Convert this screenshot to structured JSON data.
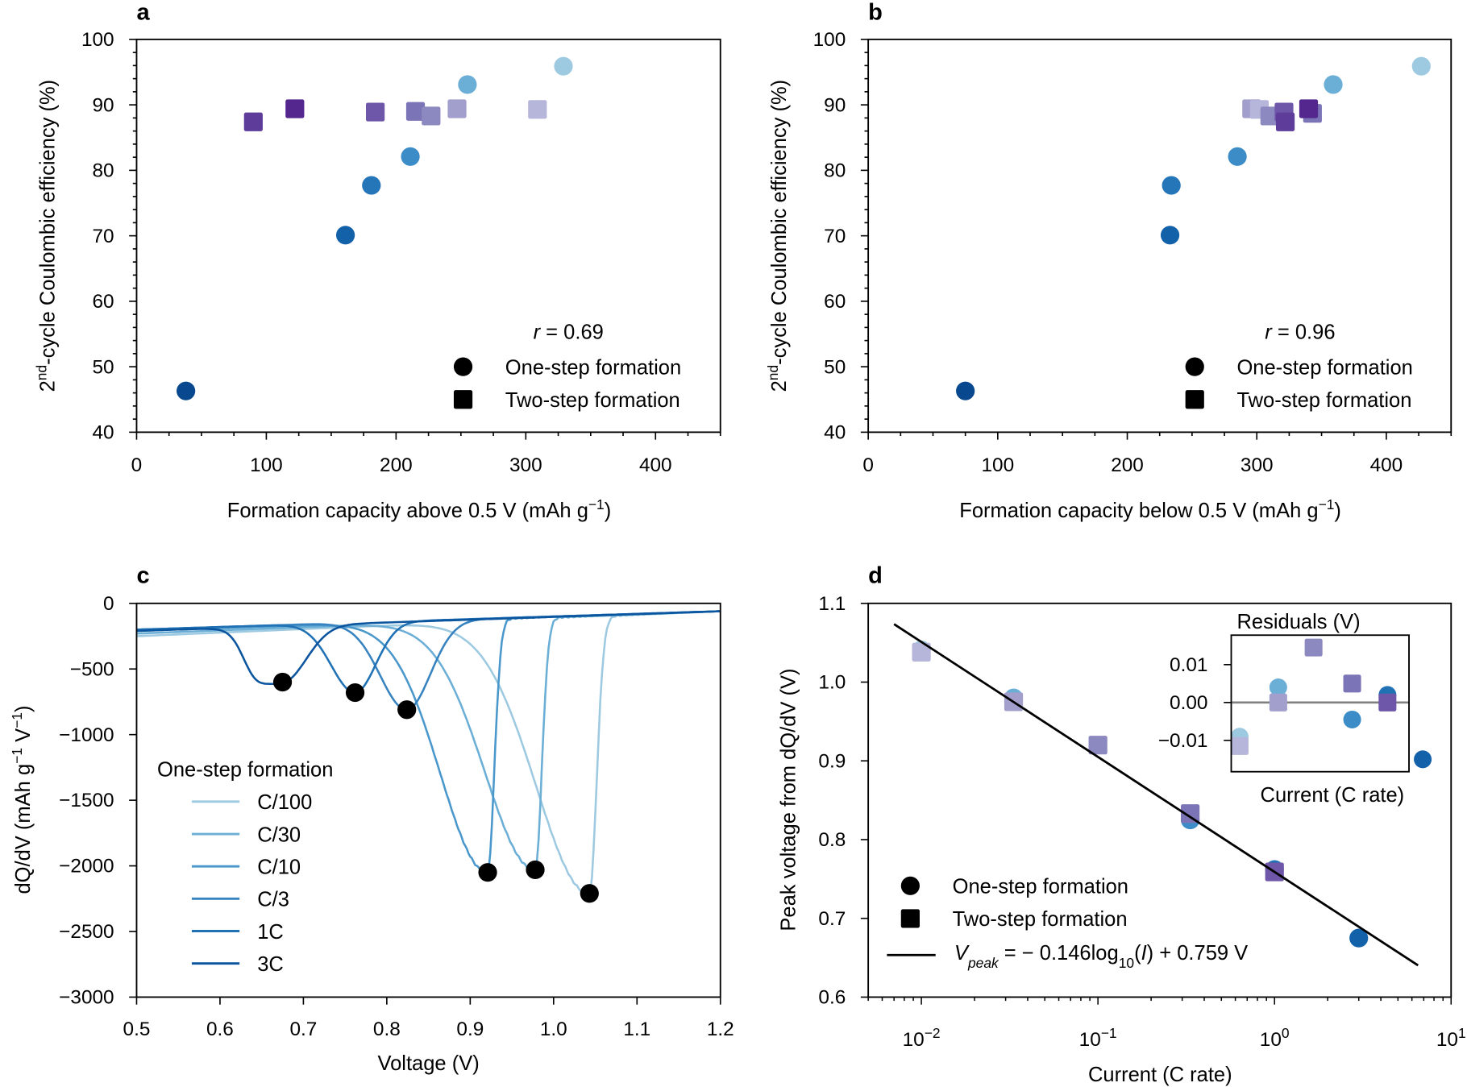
{
  "figure": {
    "panel_letters": [
      "a",
      "b",
      "c",
      "d"
    ]
  },
  "chart_data": [
    {
      "panel": "a",
      "type": "scatter",
      "xlabel_parts": [
        "Formation capacity above 0.5 V (mAh g",
        "−1",
        ")"
      ],
      "ylabel_parts": [
        "2",
        "nd",
        "-cycle Coulombic efficiency (%)"
      ],
      "xlim": [
        0,
        450
      ],
      "ylim": [
        40,
        100
      ],
      "xticks": [
        0,
        100,
        200,
        300,
        400
      ],
      "yticks": [
        40,
        50,
        60,
        70,
        80,
        90,
        100
      ],
      "annotation": {
        "var": "r",
        "text": " = 0.69"
      },
      "legend": {
        "placement": "lower-right",
        "entries": [
          {
            "marker": "circle",
            "label": "One-step formation"
          },
          {
            "marker": "square",
            "label": "Two-step formation"
          }
        ]
      },
      "series": [
        {
          "marker": "circle",
          "points": [
            {
              "x": 38,
              "y": 46.3,
              "color": "#08488e"
            },
            {
              "x": 161,
              "y": 70.1,
              "color": "#1361a9"
            },
            {
              "x": 181,
              "y": 77.7,
              "color": "#2575b9"
            },
            {
              "x": 211,
              "y": 82.1,
              "color": "#3c8dc7"
            },
            {
              "x": 255,
              "y": 93.1,
              "color": "#6baed6"
            },
            {
              "x": 329,
              "y": 95.9,
              "color": "#9ecae1"
            }
          ]
        },
        {
          "marker": "square",
          "points": [
            {
              "x": 90,
              "y": 87.4,
              "color": "#5e3c99"
            },
            {
              "x": 122,
              "y": 89.4,
              "color": "#54278f"
            },
            {
              "x": 184,
              "y": 88.9,
              "color": "#6e56a8"
            },
            {
              "x": 215,
              "y": 89.0,
              "color": "#7b75b7"
            },
            {
              "x": 227,
              "y": 88.3,
              "color": "#8c88c0"
            },
            {
              "x": 247,
              "y": 89.4,
              "color": "#a29fcd"
            },
            {
              "x": 309,
              "y": 89.3,
              "color": "#b6b6da"
            }
          ]
        }
      ]
    },
    {
      "panel": "b",
      "type": "scatter",
      "xlabel_parts": [
        "Formation capacity below 0.5 V (mAh g",
        "−1",
        ")"
      ],
      "ylabel_parts": [
        "2",
        "nd",
        "-cycle Coulombic efficiency (%)"
      ],
      "xlim": [
        0,
        450
      ],
      "ylim": [
        40,
        100
      ],
      "xticks": [
        0,
        100,
        200,
        300,
        400
      ],
      "yticks": [
        40,
        50,
        60,
        70,
        80,
        90,
        100
      ],
      "annotation": {
        "var": "r",
        "text": " = 0.96"
      },
      "legend": {
        "placement": "lower-right",
        "entries": [
          {
            "marker": "circle",
            "label": "One-step formation"
          },
          {
            "marker": "square",
            "label": "Two-step formation"
          }
        ]
      },
      "series": [
        {
          "marker": "circle",
          "points": [
            {
              "x": 75,
              "y": 46.3,
              "color": "#08488e"
            },
            {
              "x": 233,
              "y": 70.1,
              "color": "#1361a9"
            },
            {
              "x": 234,
              "y": 77.7,
              "color": "#2575b9"
            },
            {
              "x": 285,
              "y": 82.1,
              "color": "#3c8dc7"
            },
            {
              "x": 359,
              "y": 93.1,
              "color": "#6baed6"
            },
            {
              "x": 427,
              "y": 95.9,
              "color": "#9ecae1"
            }
          ]
        },
        {
          "marker": "square",
          "points": [
            {
              "x": 296,
              "y": 89.4,
              "color": "#a29fcd"
            },
            {
              "x": 302,
              "y": 89.3,
              "color": "#b6b6da"
            },
            {
              "x": 310,
              "y": 88.3,
              "color": "#8c88c0"
            },
            {
              "x": 321,
              "y": 88.9,
              "color": "#6e56a8"
            },
            {
              "x": 322,
              "y": 87.4,
              "color": "#5e3c99"
            },
            {
              "x": 343,
              "y": 88.7,
              "color": "#7b75b7"
            },
            {
              "x": 340,
              "y": 89.4,
              "color": "#54278f"
            }
          ]
        }
      ]
    },
    {
      "panel": "c",
      "type": "line",
      "xlabel": "Voltage (V)",
      "ylabel_parts": [
        "dQ/dV (mAh g",
        "−1",
        " V",
        "−1",
        ")"
      ],
      "xlim": [
        0.5,
        1.2
      ],
      "ylim": [
        -3000,
        0
      ],
      "xticks": [
        0.5,
        0.6,
        0.7,
        0.8,
        0.9,
        1.0,
        1.1,
        1.2
      ],
      "xtick_labels": [
        "0.5",
        "0.6",
        "0.7",
        "0.8",
        "0.9",
        "1.0",
        "1.1",
        "1.2"
      ],
      "yticks": [
        0,
        -500,
        -1000,
        -1500,
        -2000,
        -2500,
        -3000
      ],
      "ytick_labels": [
        "0",
        "−500",
        "−1000",
        "−1500",
        "−2000",
        "−2500",
        "−3000"
      ],
      "legend": {
        "title": "One-step formation",
        "placement": "lower-left"
      },
      "series": [
        {
          "name": "C/100",
          "color": "#9ecae1",
          "peak": {
            "x": 1.043,
            "y": -2210
          }
        },
        {
          "name": "C/30",
          "color": "#6baed6",
          "peak": {
            "x": 0.978,
            "y": -2030
          }
        },
        {
          "name": "C/10",
          "color": "#4a97cb",
          "peak": {
            "x": 0.921,
            "y": -2050
          }
        },
        {
          "name": "C/3",
          "color": "#3783c0",
          "peak": {
            "x": 0.824,
            "y": -810
          }
        },
        {
          "name": "1C",
          "color": "#2171b5",
          "peak": {
            "x": 0.762,
            "y": -680
          }
        },
        {
          "name": "3C",
          "color": "#0b559f",
          "peak": {
            "x": 0.675,
            "y": -600
          }
        }
      ]
    },
    {
      "panel": "d",
      "type": "scatter",
      "xlabel": "Current (C rate)",
      "ylabel": "Peak voltage from dQ/dV (V)",
      "xscale": "log",
      "xlim": [
        0.005,
        10
      ],
      "ylim": [
        0.6,
        1.1
      ],
      "xticks": [
        0.01,
        0.1,
        1,
        10
      ],
      "xtick_labels": [
        {
          "base": "10",
          "exp": "−2"
        },
        {
          "base": "10",
          "exp": "−1"
        },
        {
          "base": "10",
          "exp": "0"
        },
        {
          "base": "10",
          "exp": "1"
        }
      ],
      "yticks": [
        0.6,
        0.7,
        0.8,
        0.9,
        1.0,
        1.1
      ],
      "ytick_labels": [
        "0.6",
        "0.7",
        "0.8",
        "0.9",
        "1.0",
        "1.1"
      ],
      "fit": {
        "slope": -0.146,
        "intercept": 0.759,
        "xrange": [
          0.007,
          6.5
        ],
        "label_parts": [
          "V",
          "peak",
          " = − 0.146log",
          "10",
          "(",
          "I",
          ") + 0.759 V"
        ]
      },
      "legend": {
        "placement": "lower-left",
        "entries": [
          {
            "marker": "circle",
            "label": "One-step formation"
          },
          {
            "marker": "square",
            "label": "Two-step formation"
          }
        ]
      },
      "series": [
        {
          "marker": "circle",
          "points": [
            {
              "x": 0.01,
              "y": 1.041,
              "color": "#9ecae1"
            },
            {
              "x": 0.0333,
              "y": 0.98,
              "color": "#6baed6"
            },
            {
              "x": 0.333,
              "y": 0.825,
              "color": "#3c8dc7"
            },
            {
              "x": 1,
              "y": 0.762,
              "color": "#2171b5"
            },
            {
              "x": 3,
              "y": 0.675,
              "color": "#1361a9"
            }
          ]
        },
        {
          "marker": "square",
          "points": [
            {
              "x": 0.01,
              "y": 1.038,
              "color": "#b6b6da"
            },
            {
              "x": 0.0333,
              "y": 0.975,
              "color": "#a29fcd"
            },
            {
              "x": 0.1,
              "y": 0.92,
              "color": "#8c88c0"
            },
            {
              "x": 0.333,
              "y": 0.833,
              "color": "#7b75b7"
            },
            {
              "x": 1,
              "y": 0.759,
              "color": "#6e56a8"
            }
          ]
        }
      ],
      "inset": {
        "title": "Residuals (V)",
        "xlabel": "Current (C rate)",
        "xscale": "log",
        "ylim": [
          -0.018,
          0.018
        ],
        "yticks": [
          0.01,
          0.0,
          -0.01
        ],
        "ytick_labels": [
          "0.01",
          "0.00",
          "−0.01"
        ],
        "zero_line_color": "#808080",
        "series": [
          {
            "marker": "circle",
            "points": [
              {
                "x": 0.01,
                "y": -0.009,
                "color": "#9ecae1"
              },
              {
                "x": 0.0333,
                "y": 0.004,
                "color": "#6baed6"
              },
              {
                "x": 0.333,
                "y": -0.0045,
                "color": "#3c8dc7"
              },
              {
                "x": 1,
                "y": 0.002,
                "color": "#2171b5"
              },
              {
                "x": 3,
                "y": -0.015,
                "color": "#1361a9"
              }
            ]
          },
          {
            "marker": "square",
            "points": [
              {
                "x": 0.01,
                "y": -0.0115,
                "color": "#b6b6da"
              },
              {
                "x": 0.0333,
                "y": 0.0,
                "color": "#a29fcd"
              },
              {
                "x": 0.1,
                "y": 0.0145,
                "color": "#8c88c0"
              },
              {
                "x": 0.333,
                "y": 0.005,
                "color": "#7b75b7"
              },
              {
                "x": 1,
                "y": 0.0,
                "color": "#6e56a8"
              }
            ]
          }
        ]
      }
    }
  ]
}
